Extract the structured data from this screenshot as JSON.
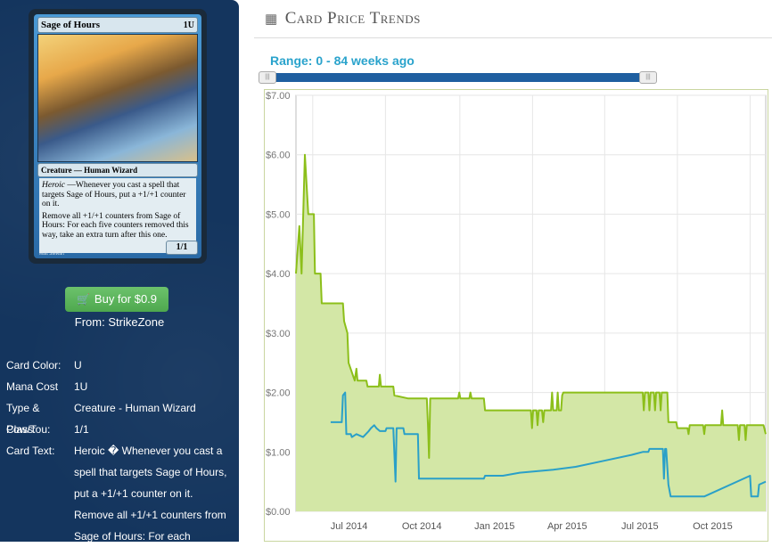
{
  "card": {
    "name": "Sage of Hours",
    "mana": "1U",
    "type_line": "Creature — Human Wizard",
    "text_heroic_label": "Heroic",
    "text_heroic": " —Whenever you cast a spell that targets Sage of Hours, put a +1/+1 counter on it.",
    "text_second": "Remove all +1/+1 counters from Sage of Hours: For each five counters removed this way, take an extra turn after this one.",
    "pt": "1/1",
    "artist": "Matt Stewart"
  },
  "buy": {
    "label": "Buy for $0.9",
    "from": "From: StrikeZone",
    "icon": "shopping-cart-icon"
  },
  "info": [
    {
      "label": "Card Color:",
      "value": "U"
    },
    {
      "label": "Mana Cost",
      "value": "1U"
    },
    {
      "label": "Type & Class:",
      "value": "Creature - Human Wizard"
    },
    {
      "label": "Pow/Tou:",
      "value": "1/1"
    },
    {
      "label": "Card Text:",
      "value": "Heroic � Whenever you cast a spell that targets Sage of Hours, put a +1/+1 counter on it. Remove all +1/+1 counters from Sage of Hours: For each"
    }
  ],
  "header": {
    "title": "Card Price Trends",
    "icon": "calendar-icon"
  },
  "range": {
    "label": "Range: 0 - 84 weeks ago",
    "min_weeks": 0,
    "max_weeks": 84
  },
  "colors": {
    "sidebar": "#14355e",
    "buy": "#5cb85c",
    "range_text": "#2aa3cc",
    "slider_track": "#1f5fa0",
    "green_line": "#8cbf1a",
    "green_fill": "#d3e7a6",
    "blue_line": "#2aa0c8"
  },
  "chart_data": {
    "type": "line",
    "title": "",
    "xlabel": "",
    "ylabel": "",
    "ylim": [
      0,
      7
    ],
    "y_ticks": [
      "$0.00",
      "$1.00",
      "$2.00",
      "$3.00",
      "$4.00",
      "$5.00",
      "$6.00",
      "$7.00"
    ],
    "x_ticks": [
      "Jul 2014",
      "Oct 2014",
      "Jan 2015",
      "Apr 2015",
      "Jul 2015",
      "Oct 2015"
    ],
    "x_range_weeks": [
      0,
      84
    ],
    "grid": true,
    "series": [
      {
        "kind": "area-line",
        "points": [
          [
            0,
            4.0
          ],
          [
            0.6,
            4.8
          ],
          [
            1,
            4.0
          ],
          [
            1.6,
            6.0
          ],
          [
            2.2,
            5.0
          ],
          [
            3.2,
            5.0
          ],
          [
            3.4,
            4.0
          ],
          [
            4.4,
            4.0
          ],
          [
            4.6,
            3.5
          ],
          [
            8.4,
            3.5
          ],
          [
            8.6,
            3.2
          ],
          [
            9.2,
            3.0
          ],
          [
            9.4,
            2.5
          ],
          [
            10.5,
            2.2
          ],
          [
            10.8,
            2.4
          ],
          [
            11.0,
            2.2
          ],
          [
            12.6,
            2.2
          ],
          [
            12.8,
            2.1
          ],
          [
            14.8,
            2.1
          ],
          [
            15.0,
            2.3
          ],
          [
            15.2,
            2.1
          ],
          [
            17.4,
            2.1
          ],
          [
            17.6,
            1.95
          ],
          [
            20,
            1.9
          ],
          [
            23.4,
            1.9
          ],
          [
            23.6,
            1.45
          ],
          [
            23.8,
            0.9
          ],
          [
            24.0,
            1.9
          ],
          [
            28,
            1.9
          ],
          [
            29,
            1.9
          ],
          [
            29.2,
            2.0
          ],
          [
            29.4,
            1.9
          ],
          [
            31,
            1.9
          ],
          [
            31.2,
            2.0
          ],
          [
            31.4,
            1.9
          ],
          [
            33.6,
            1.9
          ],
          [
            33.8,
            1.7
          ],
          [
            42,
            1.7
          ],
          [
            42.2,
            1.4
          ],
          [
            42.4,
            1.7
          ],
          [
            43,
            1.7
          ],
          [
            43.2,
            1.45
          ],
          [
            43.4,
            1.7
          ],
          [
            44,
            1.7
          ],
          [
            44.2,
            1.5
          ],
          [
            44.4,
            1.7
          ],
          [
            45.6,
            1.7
          ],
          [
            45.8,
            2.0
          ],
          [
            46,
            1.7
          ],
          [
            46.6,
            1.7
          ],
          [
            46.8,
            2.0
          ],
          [
            47,
            1.7
          ],
          [
            47.4,
            1.7
          ],
          [
            47.6,
            1.95
          ],
          [
            47.8,
            2.0
          ],
          [
            49.5,
            2.0
          ],
          [
            50,
            2.0
          ],
          [
            62,
            2.0
          ],
          [
            62.2,
            1.7
          ],
          [
            62.4,
            2.0
          ],
          [
            63,
            2.0
          ],
          [
            63.2,
            1.7
          ],
          [
            63.4,
            2.0
          ],
          [
            64,
            2.0
          ],
          [
            64.2,
            1.7
          ],
          [
            64.4,
            2.0
          ],
          [
            65,
            2.0
          ],
          [
            65.2,
            1.7
          ],
          [
            65.4,
            2.0
          ],
          [
            66.4,
            2.0
          ],
          [
            66.6,
            1.5
          ],
          [
            68,
            1.5
          ],
          [
            68.2,
            1.4
          ],
          [
            70,
            1.4
          ],
          [
            70.2,
            1.3
          ],
          [
            70.4,
            1.45
          ],
          [
            72.8,
            1.45
          ],
          [
            73,
            1.3
          ],
          [
            73.2,
            1.45
          ],
          [
            76,
            1.45
          ],
          [
            76.2,
            1.7
          ],
          [
            76.4,
            1.45
          ],
          [
            79,
            1.45
          ],
          [
            79.2,
            1.2
          ],
          [
            79.4,
            1.45
          ],
          [
            80.2,
            1.45
          ],
          [
            80.4,
            1.2
          ],
          [
            80.6,
            1.45
          ],
          [
            83.6,
            1.45
          ],
          [
            84,
            1.3
          ]
        ]
      },
      {
        "kind": "line",
        "points": [
          [
            6.2,
            1.5
          ],
          [
            8.2,
            1.5
          ],
          [
            8.4,
            1.95
          ],
          [
            8.8,
            2.0
          ],
          [
            9.0,
            1.3
          ],
          [
            9.8,
            1.3
          ],
          [
            10.0,
            1.25
          ],
          [
            10.8,
            1.3
          ],
          [
            12.0,
            1.25
          ],
          [
            13.0,
            1.35
          ],
          [
            13.4,
            1.4
          ],
          [
            14.0,
            1.45
          ],
          [
            14.4,
            1.4
          ],
          [
            15.0,
            1.35
          ],
          [
            16.0,
            1.35
          ],
          [
            16.2,
            1.4
          ],
          [
            17.4,
            1.4
          ],
          [
            17.8,
            0.5
          ],
          [
            18.0,
            1.4
          ],
          [
            19.2,
            1.4
          ],
          [
            19.4,
            1.3
          ],
          [
            21.8,
            1.3
          ],
          [
            22.0,
            0.55
          ],
          [
            31.0,
            0.55
          ],
          [
            33.6,
            0.55
          ],
          [
            33.8,
            0.6
          ],
          [
            37.0,
            0.6
          ],
          [
            40.0,
            0.65
          ],
          [
            46.0,
            0.7
          ],
          [
            50.0,
            0.75
          ],
          [
            55.0,
            0.85
          ],
          [
            60.0,
            0.95
          ],
          [
            62.0,
            1.0
          ],
          [
            63.0,
            1.0
          ],
          [
            63.2,
            1.05
          ],
          [
            65.6,
            1.05
          ],
          [
            65.8,
            0.55
          ],
          [
            66.0,
            1.05
          ],
          [
            66.2,
            1.05
          ],
          [
            66.6,
            0.45
          ],
          [
            67.0,
            0.25
          ],
          [
            70.0,
            0.25
          ],
          [
            73.0,
            0.25
          ],
          [
            81.2,
            0.6
          ],
          [
            81.4,
            0.25
          ],
          [
            82.0,
            0.25
          ],
          [
            82.6,
            0.25
          ],
          [
            82.8,
            0.45
          ],
          [
            84.0,
            0.5
          ]
        ]
      }
    ]
  }
}
